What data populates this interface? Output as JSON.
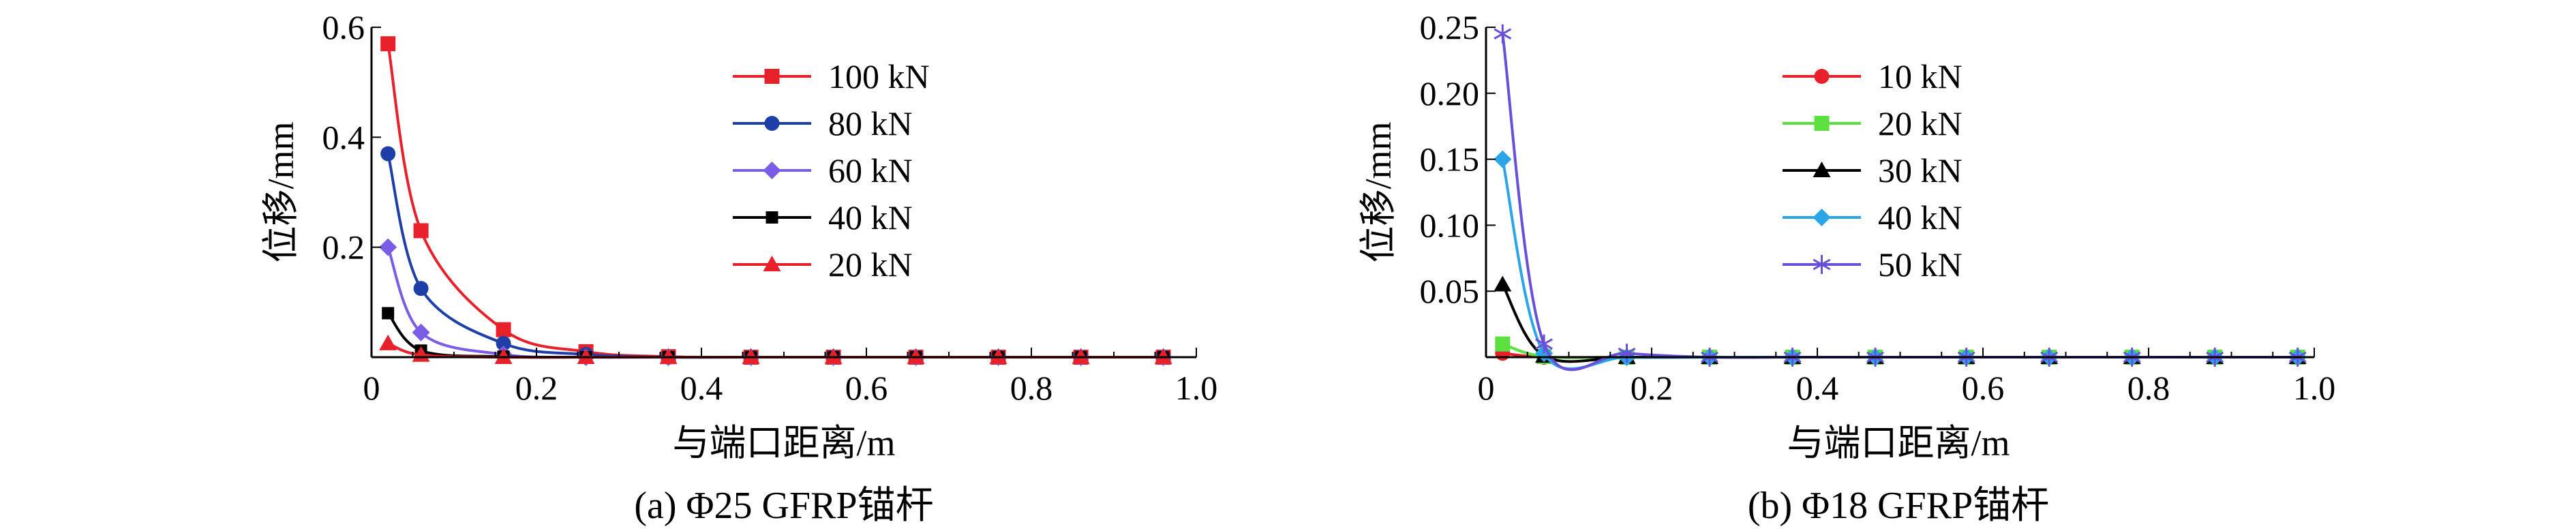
{
  "chart_data": [
    {
      "id": "a",
      "type": "line",
      "caption": "(a) Φ25 GFRP锚杆",
      "xlabel": "与端口距离/m",
      "ylabel": "位移/mm",
      "xlim": [
        0,
        1.0
      ],
      "ylim": [
        0,
        0.6
      ],
      "xticks": [
        0,
        0.2,
        0.4,
        0.6,
        0.8,
        1.0
      ],
      "xtick_labels": [
        "0",
        "0.2",
        "0.4",
        "0.6",
        "0.8",
        "1.0"
      ],
      "yticks": [
        0.2,
        0.4,
        0.6
      ],
      "ytick_labels": [
        "0.2",
        "0.4",
        "0.6"
      ],
      "legend_position": "top-right",
      "grid": false,
      "x": [
        0.02,
        0.06,
        0.16,
        0.26,
        0.36,
        0.46,
        0.56,
        0.66,
        0.76,
        0.86,
        0.96
      ],
      "series": [
        {
          "name": "100 kN",
          "color": "#e8202a",
          "marker": "square",
          "values": [
            0.57,
            0.23,
            0.05,
            0.01,
            0.001,
            0,
            0,
            0,
            0,
            0,
            0
          ]
        },
        {
          "name": "80 kN",
          "color": "#1f3fa8",
          "marker": "circle",
          "values": [
            0.37,
            0.125,
            0.025,
            0.005,
            0,
            0,
            0,
            0,
            0,
            0,
            0
          ]
        },
        {
          "name": "60 kN",
          "color": "#7a5ce6",
          "marker": "diamond",
          "values": [
            0.2,
            0.045,
            0.005,
            0,
            0,
            0,
            0,
            0,
            0,
            0,
            0
          ]
        },
        {
          "name": "40 kN",
          "color": "#000000",
          "marker": "square-small",
          "values": [
            0.08,
            0.012,
            0.001,
            0,
            0,
            0,
            0,
            0,
            0,
            0,
            0
          ]
        },
        {
          "name": "20 kN",
          "color": "#e8202a",
          "marker": "triangle",
          "values": [
            0.025,
            0.004,
            0,
            0,
            0,
            0,
            0,
            0,
            0,
            0,
            0
          ]
        }
      ]
    },
    {
      "id": "b",
      "type": "line",
      "caption": "(b) Φ18 GFRP锚杆",
      "xlabel": "与端口距离/m",
      "ylabel": "位移/mm",
      "xlim": [
        0,
        1.0
      ],
      "ylim": [
        0,
        0.25
      ],
      "xticks": [
        0,
        0.2,
        0.4,
        0.6,
        0.8,
        1.0
      ],
      "xtick_labels": [
        "0",
        "0.2",
        "0.4",
        "0.6",
        "0.8",
        "1.0"
      ],
      "yticks": [
        0.05,
        0.1,
        0.15,
        0.2,
        0.25
      ],
      "ytick_labels": [
        "0.05",
        "0.10",
        "0.15",
        "0.20",
        "0.25"
      ],
      "legend_position": "top-right",
      "grid": false,
      "x": [
        0.02,
        0.07,
        0.17,
        0.27,
        0.37,
        0.47,
        0.58,
        0.68,
        0.78,
        0.88,
        0.98
      ],
      "series": [
        {
          "name": "10 kN",
          "color": "#e8202a",
          "marker": "circle",
          "values": [
            0.003,
            0.0,
            0,
            0,
            0,
            0,
            0,
            0,
            0,
            0,
            0
          ]
        },
        {
          "name": "20 kN",
          "color": "#5be040",
          "marker": "square",
          "values": [
            0.01,
            0.0005,
            0,
            0,
            0,
            0,
            0,
            0,
            0,
            0,
            0
          ]
        },
        {
          "name": "30 kN",
          "color": "#000000",
          "marker": "triangle",
          "values": [
            0.055,
            0.001,
            0,
            0,
            0,
            0,
            0,
            0,
            0,
            0,
            0
          ]
        },
        {
          "name": "40 kN",
          "color": "#2aa5e8",
          "marker": "diamond",
          "values": [
            0.15,
            0.003,
            0,
            0,
            0,
            0,
            0,
            0,
            0,
            0,
            0
          ]
        },
        {
          "name": "50 kN",
          "color": "#6a4fd8",
          "marker": "asterisk",
          "values": [
            0.245,
            0.01,
            0.003,
            0,
            0,
            0,
            0,
            0,
            0,
            0,
            0
          ]
        }
      ]
    }
  ]
}
